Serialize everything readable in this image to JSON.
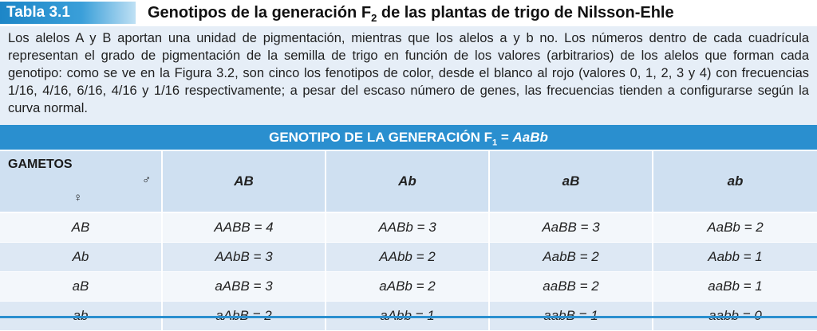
{
  "header": {
    "tag": "Tabla 3.1",
    "title_pre": "Genotipos de la generación F",
    "title_sub": "2",
    "title_post": " de las plantas de trigo de Nilsson-Ehle"
  },
  "intro": {
    "text": "Los alelos A y B aportan una unidad de pigmentación, mientras que los alelos a y b no. Los números dentro de cada cuadrícula representan el grado de pigmentación de la semilla de trigo en función de los valores (arbitrarios) de los alelos que forman cada genotipo: como se ve en la Figura 3.2, son cinco los fenotipos de color, desde el blanco al rojo (valores 0, 1, 2, 3 y 4) con frecuencias 1/16, 4/16, 6/16, 4/16 y 1/16 respectivamente; a pesar del escaso número de genes, las frecuencias tienden a configurarse según la curva normal."
  },
  "table": {
    "title_pre": "GENOTIPO DE LA GENERACIÓN F",
    "title_sub": "1",
    "title_eq": " = ",
    "title_geno": "AaBb",
    "corner_label": "GAMETOS",
    "male_symbol": "♂",
    "female_symbol": "♀",
    "columns": [
      "AB",
      "Ab",
      "aB",
      "ab"
    ],
    "rows": [
      {
        "gamete": "AB",
        "cells": [
          "AABB = 4",
          "AABb = 3",
          "AaBB = 3",
          "AaBb = 2"
        ]
      },
      {
        "gamete": "Ab",
        "cells": [
          "AAbB = 3",
          "AAbb = 2",
          "AabB = 2",
          "Aabb = 1"
        ]
      },
      {
        "gamete": "aB",
        "cells": [
          "aABB = 3",
          "aABb = 2",
          "aaBB = 2",
          "aaBb = 1"
        ]
      },
      {
        "gamete": "ab",
        "cells": [
          "aAbB = 2",
          "aAbb = 1",
          "aabB = 1",
          "aabb = 0"
        ]
      }
    ]
  },
  "colors": {
    "accent": "#2a8fcf",
    "intro_bg": "#e6eef7",
    "header_row_bg": "#cfe0f1",
    "row_light": "#f3f7fb",
    "row_dark": "#dde8f4"
  }
}
